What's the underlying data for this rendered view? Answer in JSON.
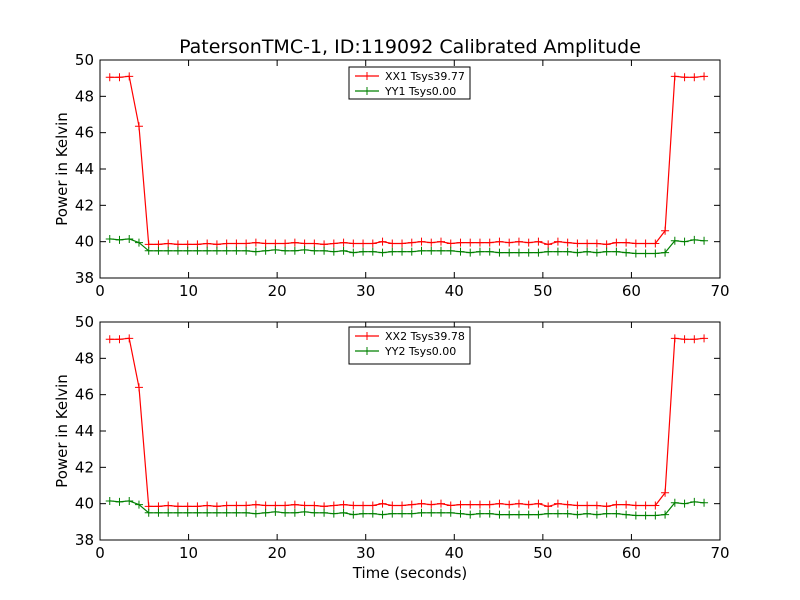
{
  "figure": {
    "title": "PatersonTMC-1, ID:119092 Calibrated Amplitude"
  },
  "chart_data": [
    {
      "type": "line",
      "title": "PatersonTMC-1, ID:119092 Calibrated Amplitude",
      "xlabel": "",
      "ylabel": "Power in Kelvin",
      "xlim": [
        0,
        70
      ],
      "ylim": [
        38,
        50
      ],
      "xticks": [
        "0",
        "10",
        "20",
        "30",
        "40",
        "50",
        "60",
        "70"
      ],
      "yticks": [
        "38",
        "40",
        "42",
        "44",
        "46",
        "48",
        "50"
      ],
      "grid": false,
      "legend_position": "top-center",
      "x": [
        1.1,
        2.2,
        3.3,
        4.4,
        5.5,
        6.6,
        7.7,
        8.8,
        9.9,
        11.0,
        12.1,
        13.2,
        14.3,
        15.4,
        16.5,
        17.6,
        18.7,
        19.8,
        20.9,
        22.0,
        23.1,
        24.2,
        25.3,
        26.4,
        27.5,
        28.6,
        29.7,
        30.8,
        31.9,
        33.0,
        34.1,
        35.2,
        36.3,
        37.4,
        38.5,
        39.6,
        40.7,
        41.8,
        42.9,
        44.0,
        45.1,
        46.2,
        47.3,
        48.4,
        49.5,
        50.6,
        51.7,
        52.8,
        53.9,
        55.0,
        56.1,
        57.2,
        58.3,
        59.4,
        60.5,
        61.6,
        62.7,
        63.8,
        64.9,
        66.0,
        67.1,
        68.2
      ],
      "series": [
        {
          "name": "XX1 Tsys39.77",
          "color": "#ff0000",
          "values": [
            49.05,
            49.05,
            49.1,
            46.35,
            39.85,
            39.85,
            39.9,
            39.85,
            39.85,
            39.85,
            39.9,
            39.85,
            39.9,
            39.9,
            39.9,
            39.95,
            39.9,
            39.9,
            39.9,
            39.95,
            39.9,
            39.9,
            39.85,
            39.9,
            39.95,
            39.9,
            39.9,
            39.9,
            40.0,
            39.9,
            39.9,
            39.95,
            40.0,
            39.95,
            40.0,
            39.9,
            39.95,
            39.95,
            39.95,
            39.95,
            40.0,
            39.95,
            40.0,
            39.95,
            40.0,
            39.85,
            40.0,
            39.95,
            39.9,
            39.9,
            39.9,
            39.85,
            39.95,
            39.95,
            39.9,
            39.9,
            39.9,
            40.6,
            49.1,
            49.05,
            49.05,
            49.1
          ]
        },
        {
          "name": "YY1 Tsys0.00",
          "color": "#008000",
          "values": [
            40.15,
            40.1,
            40.15,
            39.95,
            39.5,
            39.5,
            39.5,
            39.5,
            39.5,
            39.5,
            39.5,
            39.5,
            39.5,
            39.5,
            39.5,
            39.45,
            39.5,
            39.55,
            39.5,
            39.5,
            39.55,
            39.5,
            39.5,
            39.45,
            39.5,
            39.4,
            39.45,
            39.45,
            39.4,
            39.45,
            39.45,
            39.45,
            39.5,
            39.5,
            39.5,
            39.5,
            39.45,
            39.4,
            39.45,
            39.45,
            39.4,
            39.4,
            39.4,
            39.4,
            39.4,
            39.45,
            39.45,
            39.45,
            39.4,
            39.45,
            39.4,
            39.45,
            39.45,
            39.4,
            39.35,
            39.35,
            39.35,
            39.4,
            40.05,
            40.0,
            40.1,
            40.05
          ]
        }
      ]
    },
    {
      "type": "line",
      "title": "",
      "xlabel": "Time (seconds)",
      "ylabel": "Power in Kelvin",
      "xlim": [
        0,
        70
      ],
      "ylim": [
        38,
        50
      ],
      "xticks": [
        "0",
        "10",
        "20",
        "30",
        "40",
        "50",
        "60",
        "70"
      ],
      "yticks": [
        "38",
        "40",
        "42",
        "44",
        "46",
        "48",
        "50"
      ],
      "grid": false,
      "legend_position": "top-center",
      "x": [
        1.1,
        2.2,
        3.3,
        4.4,
        5.5,
        6.6,
        7.7,
        8.8,
        9.9,
        11.0,
        12.1,
        13.2,
        14.3,
        15.4,
        16.5,
        17.6,
        18.7,
        19.8,
        20.9,
        22.0,
        23.1,
        24.2,
        25.3,
        26.4,
        27.5,
        28.6,
        29.7,
        30.8,
        31.9,
        33.0,
        34.1,
        35.2,
        36.3,
        37.4,
        38.5,
        39.6,
        40.7,
        41.8,
        42.9,
        44.0,
        45.1,
        46.2,
        47.3,
        48.4,
        49.5,
        50.6,
        51.7,
        52.8,
        53.9,
        55.0,
        56.1,
        57.2,
        58.3,
        59.4,
        60.5,
        61.6,
        62.7,
        63.8,
        64.9,
        66.0,
        67.1,
        68.2
      ],
      "series": [
        {
          "name": "XX2 Tsys39.78",
          "color": "#ff0000",
          "values": [
            49.05,
            49.05,
            49.1,
            46.4,
            39.85,
            39.85,
            39.9,
            39.85,
            39.85,
            39.85,
            39.9,
            39.85,
            39.9,
            39.9,
            39.9,
            39.95,
            39.9,
            39.9,
            39.9,
            39.95,
            39.9,
            39.9,
            39.85,
            39.9,
            39.95,
            39.9,
            39.9,
            39.9,
            40.0,
            39.9,
            39.9,
            39.95,
            40.0,
            39.95,
            40.0,
            39.9,
            39.95,
            39.95,
            39.95,
            39.95,
            40.0,
            39.95,
            40.0,
            39.95,
            40.0,
            39.85,
            40.0,
            39.95,
            39.9,
            39.9,
            39.9,
            39.85,
            39.95,
            39.95,
            39.9,
            39.9,
            39.9,
            40.6,
            49.1,
            49.05,
            49.05,
            49.1
          ]
        },
        {
          "name": "YY2 Tsys0.00",
          "color": "#008000",
          "values": [
            40.15,
            40.1,
            40.15,
            39.95,
            39.5,
            39.5,
            39.5,
            39.5,
            39.5,
            39.5,
            39.5,
            39.5,
            39.5,
            39.5,
            39.5,
            39.45,
            39.5,
            39.55,
            39.5,
            39.5,
            39.55,
            39.5,
            39.5,
            39.45,
            39.5,
            39.4,
            39.45,
            39.45,
            39.4,
            39.45,
            39.45,
            39.45,
            39.5,
            39.5,
            39.5,
            39.5,
            39.45,
            39.4,
            39.45,
            39.45,
            39.4,
            39.4,
            39.4,
            39.4,
            39.4,
            39.45,
            39.45,
            39.45,
            39.4,
            39.45,
            39.4,
            39.45,
            39.45,
            39.4,
            39.35,
            39.35,
            39.35,
            39.4,
            40.05,
            40.0,
            40.1,
            40.05
          ]
        }
      ]
    }
  ]
}
